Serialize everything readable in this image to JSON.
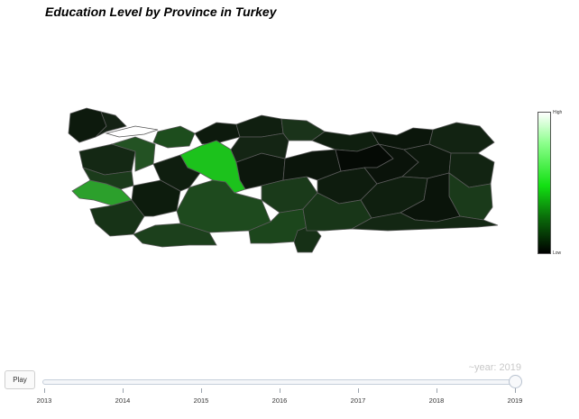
{
  "title": "Education Level by Province in Turkey",
  "colorbar": {
    "high_label": "High",
    "low_label": "Low"
  },
  "colors": {
    "low": "#000000",
    "mid": "#1a4a1a",
    "high_province": "#1cc21c",
    "izmir": "#2ca02c",
    "border": "#5a5a5a"
  },
  "animation": {
    "play_label": "Play",
    "current_year_label": "~year: 2019",
    "years": [
      "2013",
      "2014",
      "2015",
      "2016",
      "2017",
      "2018",
      "2019"
    ],
    "selected_index": 6
  }
}
